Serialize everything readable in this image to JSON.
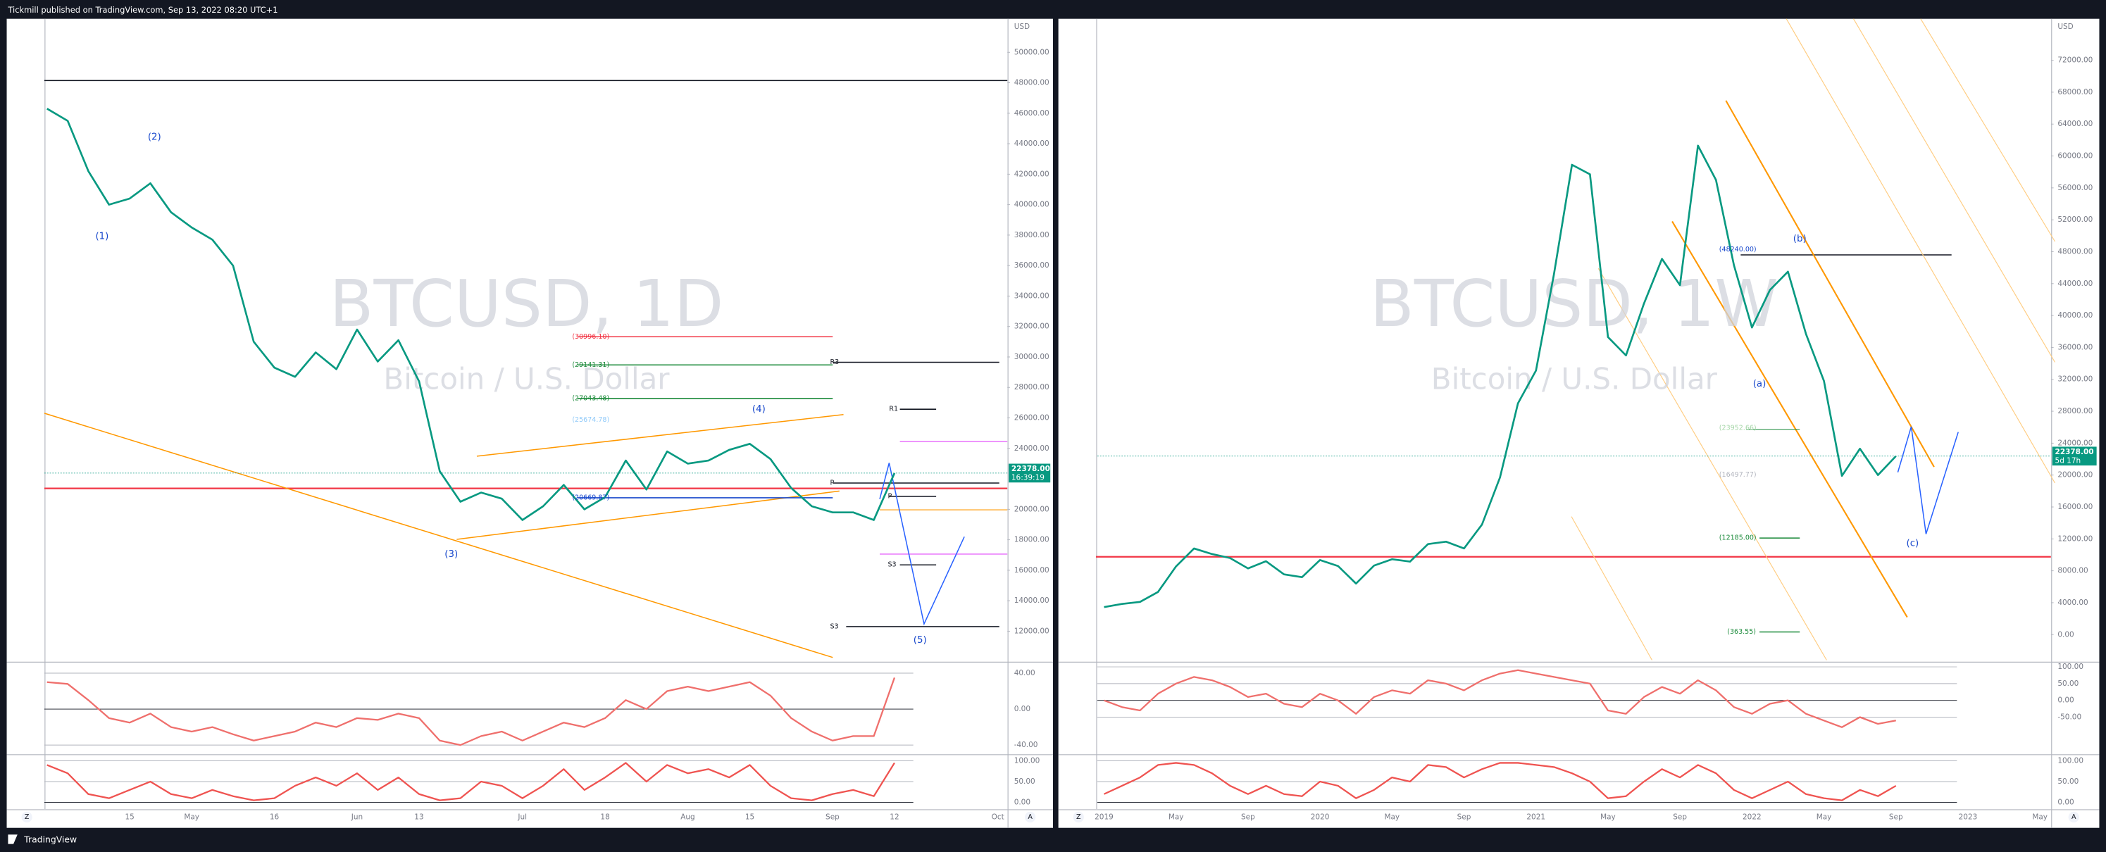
{
  "header": "Tickmill published on TradingView.com, Sep 13, 2022 08:20 UTC+1",
  "footer": "TradingView",
  "axis_buttons": [
    "Z",
    "A"
  ],
  "chart_data": [
    {
      "type": "line",
      "title": "BTCUSD, 1D",
      "subtitle": "Bitcoin / U.S. Dollar",
      "unit": "USD",
      "color": "#089981",
      "categories": [
        null,
        null,
        null,
        null,
        "15",
        null,
        null,
        "May",
        null,
        null,
        null,
        "16",
        null,
        null,
        null,
        "Jun",
        null,
        null,
        "13",
        null,
        null,
        null,
        null,
        "Jul",
        null,
        null,
        null,
        "18",
        null,
        null,
        null,
        "Aug",
        null,
        null,
        "15",
        null,
        null,
        null,
        "Sep",
        null,
        null,
        "12",
        null,
        null,
        null,
        null,
        "Oct"
      ],
      "values": [
        46300,
        45500,
        42200,
        40000,
        40400,
        41400,
        39500,
        38500,
        37700,
        36000,
        31000,
        29300,
        28700,
        30300,
        29200,
        31800,
        29700,
        31100,
        28400,
        22500,
        20500,
        21100,
        20700,
        19300,
        20200,
        21600,
        20000,
        20800,
        23200,
        21300,
        23800,
        23000,
        23200,
        23900,
        24300,
        23300,
        21400,
        20200,
        19800,
        19800,
        19300,
        22378,
        null,
        null,
        null,
        null,
        null
      ],
      "ylim": [
        10100,
        52200
      ],
      "yticks": [
        {
          "value": 12000,
          "label": "12000.00"
        },
        {
          "value": 14000,
          "label": "14000.00"
        },
        {
          "value": 16000,
          "label": "16000.00"
        },
        {
          "value": 18000,
          "label": "18000.00"
        },
        {
          "value": 20000,
          "label": "20000.00"
        },
        {
          "value": 24000,
          "label": "24000.00"
        },
        {
          "value": 26000,
          "label": "26000.00"
        },
        {
          "value": 28000,
          "label": "28000.00"
        },
        {
          "value": 30000,
          "label": "30000.00"
        },
        {
          "value": 32000,
          "label": "32000.00"
        },
        {
          "value": 34000,
          "label": "34000.00"
        },
        {
          "value": 36000,
          "label": "36000.00"
        },
        {
          "value": 38000,
          "label": "38000.00"
        },
        {
          "value": 40000,
          "label": "40000.00"
        },
        {
          "value": 42000,
          "label": "42000.00"
        },
        {
          "value": 44000,
          "label": "44000.00"
        },
        {
          "value": 46000,
          "label": "46000.00"
        },
        {
          "value": 48000,
          "label": "48000.00"
        },
        {
          "value": 50000,
          "label": "50000.00"
        }
      ],
      "last_price": {
        "value": 22378,
        "label": "22378.00"
      },
      "countdown": "16:39:19",
      "annotations": [
        "(1)",
        "(2)",
        "(3)",
        "(4)",
        "(5)",
        "(30996.10)",
        "(29141.31)",
        "(27043.48)",
        "(25674.78)",
        "(20669.87)",
        "R3",
        "R1",
        "P",
        "P",
        "S3",
        "S3"
      ],
      "indicators": [
        {
          "ylim": [
            -50,
            50
          ],
          "yticks": [
            {
              "value": 40,
              "label": "40.00"
            },
            {
              "value": 0,
              "label": "0.00"
            },
            {
              "value": -40,
              "label": "-40.00"
            }
          ],
          "color": "#ef6f6c",
          "values": [
            30,
            28,
            10,
            -10,
            -15,
            -5,
            -20,
            -25,
            -20,
            -28,
            -35,
            -30,
            -25,
            -15,
            -20,
            -10,
            -12,
            -5,
            -10,
            -35,
            -40,
            -30,
            -25,
            -35,
            -25,
            -15,
            -20,
            -10,
            10,
            0,
            20,
            25,
            20,
            25,
            30,
            15,
            -10,
            -25,
            -35,
            -30,
            -30,
            35,
            null,
            null,
            null,
            null,
            null
          ]
        },
        {
          "ylim": [
            -16,
            113
          ],
          "yticks": [
            {
              "value": 100,
              "label": "100.00"
            },
            {
              "value": 50,
              "label": "50.00"
            },
            {
              "value": 0,
              "label": "0.00"
            }
          ],
          "color": "#ef5350",
          "values": [
            90,
            70,
            20,
            10,
            30,
            50,
            20,
            10,
            30,
            15,
            5,
            10,
            40,
            60,
            40,
            70,
            30,
            60,
            20,
            5,
            10,
            50,
            40,
            10,
            40,
            80,
            30,
            60,
            95,
            50,
            90,
            70,
            80,
            60,
            90,
            40,
            10,
            5,
            20,
            30,
            15,
            95,
            null,
            null,
            null,
            null,
            null
          ]
        }
      ]
    },
    {
      "type": "line",
      "title": "BTCUSD, 1W",
      "subtitle": "Bitcoin / U.S. Dollar",
      "unit": "USD",
      "color": "#089981",
      "categories": [
        "2019",
        null,
        null,
        null,
        "May",
        null,
        null,
        null,
        "Sep",
        null,
        null,
        null,
        "2020",
        null,
        null,
        null,
        "May",
        null,
        null,
        null,
        "Sep",
        null,
        null,
        null,
        "2021",
        null,
        null,
        null,
        "May",
        null,
        null,
        null,
        "Sep",
        null,
        null,
        null,
        "2022",
        null,
        null,
        null,
        "May",
        null,
        null,
        null,
        "Sep",
        null,
        null,
        null,
        "2023",
        null,
        null,
        null,
        "May"
      ],
      "values": [
        3450,
        3850,
        4100,
        5350,
        8550,
        10800,
        10100,
        9600,
        8300,
        9200,
        7550,
        7200,
        9350,
        8600,
        6400,
        8650,
        9450,
        9150,
        11350,
        11650,
        10800,
        13800,
        19700,
        29000,
        33100,
        45200,
        58900,
        57700,
        37300,
        35000,
        41500,
        47100,
        43800,
        61300,
        57000,
        46300,
        38500,
        43200,
        45500,
        37700,
        31800,
        19900,
        23300,
        20000,
        22378,
        null,
        null,
        null,
        null,
        null,
        null,
        null,
        null
      ],
      "ylim": [
        -3200,
        77200
      ],
      "yticks": [
        {
          "value": 0,
          "label": "0.00"
        },
        {
          "value": 4000,
          "label": "4000.00"
        },
        {
          "value": 8000,
          "label": "8000.00"
        },
        {
          "value": 12000,
          "label": "12000.00"
        },
        {
          "value": 16000,
          "label": "16000.00"
        },
        {
          "value": 20000,
          "label": "20000.00"
        },
        {
          "value": 24000,
          "label": "24000.00"
        },
        {
          "value": 28000,
          "label": "28000.00"
        },
        {
          "value": 32000,
          "label": "32000.00"
        },
        {
          "value": 36000,
          "label": "36000.00"
        },
        {
          "value": 40000,
          "label": "40000.00"
        },
        {
          "value": 44000,
          "label": "44000.00"
        },
        {
          "value": 48000,
          "label": "48000.00"
        },
        {
          "value": 52000,
          "label": "52000.00"
        },
        {
          "value": 56000,
          "label": "56000.00"
        },
        {
          "value": 60000,
          "label": "60000.00"
        },
        {
          "value": 64000,
          "label": "64000.00"
        },
        {
          "value": 68000,
          "label": "68000.00"
        },
        {
          "value": 72000,
          "label": "72000.00"
        }
      ],
      "last_price": {
        "value": 22378,
        "label": "22378.00"
      },
      "countdown": "5d 17h",
      "annotations": [
        "(a)",
        "(b)",
        "(c)",
        "(48240.00)",
        "(23952.66)",
        "(16497.77)",
        "(12185.00)",
        "(363.55)"
      ],
      "indicators": [
        {
          "ylim": [
            -160,
            108
          ],
          "yticks": [
            {
              "value": 100,
              "label": "100.00"
            },
            {
              "value": 50,
              "label": "50.00"
            },
            {
              "value": 0,
              "label": "0.00"
            },
            {
              "value": -50,
              "label": "-50.00"
            }
          ],
          "color": "#ef6f6c",
          "values": [
            0,
            -20,
            -30,
            20,
            50,
            70,
            60,
            40,
            10,
            20,
            -10,
            -20,
            20,
            0,
            -40,
            10,
            30,
            20,
            60,
            50,
            30,
            60,
            80,
            90,
            80,
            70,
            60,
            50,
            -30,
            -40,
            10,
            40,
            20,
            60,
            30,
            -20,
            -40,
            -10,
            0,
            -40,
            -60,
            -80,
            -50,
            -70,
            -60,
            null,
            null,
            null,
            null,
            null,
            null,
            null,
            null
          ]
        },
        {
          "ylim": [
            -16,
            113
          ],
          "yticks": [
            {
              "value": 100,
              "label": "100.00"
            },
            {
              "value": 50,
              "label": "50.00"
            },
            {
              "value": 0,
              "label": "0.00"
            }
          ],
          "color": "#ef5350",
          "values": [
            20,
            40,
            60,
            90,
            95,
            90,
            70,
            40,
            20,
            40,
            20,
            15,
            50,
            40,
            10,
            30,
            60,
            50,
            90,
            85,
            60,
            80,
            95,
            95,
            90,
            85,
            70,
            50,
            10,
            15,
            50,
            80,
            60,
            90,
            70,
            30,
            10,
            30,
            50,
            20,
            10,
            5,
            30,
            15,
            40,
            null,
            null,
            null,
            null,
            null,
            null,
            null,
            null
          ]
        }
      ]
    }
  ]
}
